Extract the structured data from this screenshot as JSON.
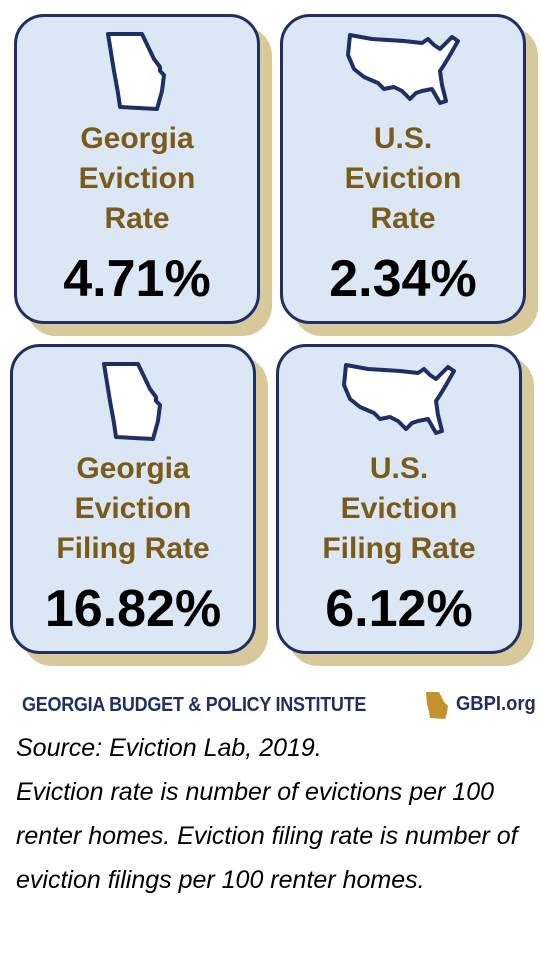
{
  "cards": [
    {
      "label_lines": [
        "Georgia",
        "Eviction",
        "Rate"
      ],
      "value": "4.71%",
      "map": "georgia-map-icon"
    },
    {
      "label_lines": [
        "U.S.",
        "Eviction",
        "Rate"
      ],
      "value": "2.34%",
      "map": "usa-map-icon"
    },
    {
      "label_lines": [
        "Georgia",
        "Eviction",
        "Filing Rate"
      ],
      "value": "16.82%",
      "map": "georgia-map-icon"
    },
    {
      "label_lines": [
        "U.S.",
        "Eviction",
        "Filing Rate"
      ],
      "value": "6.12%",
      "map": "usa-map-icon"
    }
  ],
  "logo": {
    "name": "GEORGIA BUDGET & POLICY INSTITUTE",
    "url": "GBPI.org"
  },
  "source": {
    "line1": "Source: Eviction Lab, 2019.",
    "line2": "Eviction rate is number of evictions per 100 renter homes. Eviction filing rate is number of eviction filings per 100 renter homes."
  },
  "colors": {
    "card_fill": "#dce7f6",
    "card_border": "#1f2f66",
    "card_shadow": "#d8c99a",
    "label": "#7a5b1a",
    "logo": "#1f2f66"
  }
}
